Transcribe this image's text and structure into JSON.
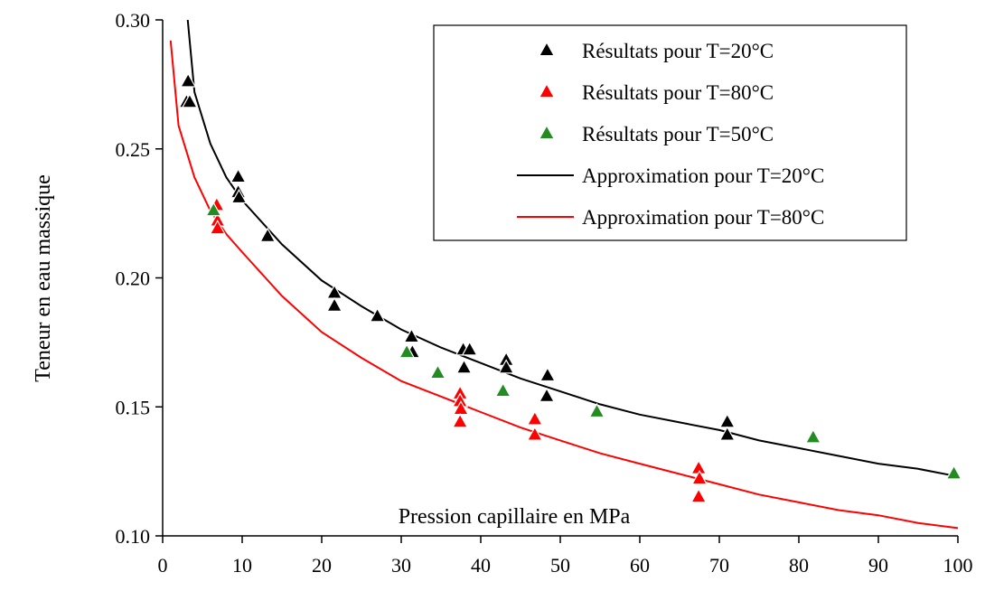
{
  "chart_data": {
    "type": "scatter",
    "title": "",
    "xlabel": "Pression capillaire en MPa",
    "ylabel": "Teneur en eau massique",
    "xlim": [
      0,
      100
    ],
    "ylim": [
      0.1,
      0.3
    ],
    "xticks": [
      "0",
      "10",
      "20",
      "30",
      "40",
      "50",
      "60",
      "70",
      "80",
      "90",
      "100"
    ],
    "xtick_values": [
      0,
      10,
      20,
      30,
      40,
      50,
      60,
      70,
      80,
      90,
      100
    ],
    "yticks": [
      "0.10",
      "0.15",
      "0.20",
      "0.25",
      "0.30"
    ],
    "ytick_values": [
      0.1,
      0.15,
      0.2,
      0.25,
      0.3
    ],
    "grid": false,
    "legend_position": "top-right",
    "series": [
      {
        "name": "Résultats pour T=20°C",
        "kind": "marker",
        "marker": "triangle",
        "color": "#000000",
        "points": [
          [
            3.2,
            0.276
          ],
          [
            3.0,
            0.268
          ],
          [
            3.4,
            0.268
          ],
          [
            9.5,
            0.239
          ],
          [
            9.5,
            0.233
          ],
          [
            9.6,
            0.231
          ],
          [
            13.2,
            0.216
          ],
          [
            21.6,
            0.194
          ],
          [
            21.6,
            0.189
          ],
          [
            27.0,
            0.185
          ],
          [
            31.3,
            0.177
          ],
          [
            31.4,
            0.171
          ],
          [
            37.8,
            0.172
          ],
          [
            38.6,
            0.172
          ],
          [
            37.9,
            0.165
          ],
          [
            43.2,
            0.168
          ],
          [
            43.2,
            0.165
          ],
          [
            48.4,
            0.162
          ],
          [
            48.3,
            0.154
          ],
          [
            71.0,
            0.144
          ],
          [
            71.0,
            0.139
          ]
        ]
      },
      {
        "name": "Résultats pour T=80°C",
        "kind": "marker",
        "marker": "triangle",
        "color": "#ff0000",
        "points": [
          [
            6.8,
            0.228
          ],
          [
            6.9,
            0.222
          ],
          [
            6.9,
            0.219
          ],
          [
            37.4,
            0.155
          ],
          [
            37.4,
            0.152
          ],
          [
            37.5,
            0.149
          ],
          [
            37.4,
            0.144
          ],
          [
            46.8,
            0.145
          ],
          [
            46.8,
            0.139
          ],
          [
            67.4,
            0.126
          ],
          [
            67.5,
            0.122
          ],
          [
            67.4,
            0.115
          ]
        ]
      },
      {
        "name": "Résultats pour T=50°C",
        "kind": "marker",
        "marker": "triangle",
        "color": "#228b22",
        "points": [
          [
            6.4,
            0.226
          ],
          [
            30.7,
            0.171
          ],
          [
            34.6,
            0.163
          ],
          [
            42.8,
            0.156
          ],
          [
            54.6,
            0.148
          ],
          [
            81.8,
            0.138
          ],
          [
            99.5,
            0.124
          ]
        ]
      },
      {
        "name": "Approximation pour T=20°C",
        "kind": "line",
        "color": "#000000",
        "points": [
          [
            3.0,
            0.305
          ],
          [
            4.0,
            0.272
          ],
          [
            6.0,
            0.252
          ],
          [
            8.0,
            0.239
          ],
          [
            10.0,
            0.23
          ],
          [
            15.0,
            0.213
          ],
          [
            20.0,
            0.199
          ],
          [
            25.0,
            0.189
          ],
          [
            30.0,
            0.18
          ],
          [
            35.0,
            0.173
          ],
          [
            40.0,
            0.167
          ],
          [
            45.0,
            0.161
          ],
          [
            50.0,
            0.156
          ],
          [
            55.0,
            0.151
          ],
          [
            60.0,
            0.147
          ],
          [
            65.0,
            0.144
          ],
          [
            70.0,
            0.141
          ],
          [
            75.0,
            0.137
          ],
          [
            80.0,
            0.134
          ],
          [
            85.0,
            0.131
          ],
          [
            90.0,
            0.128
          ],
          [
            95.0,
            0.126
          ],
          [
            100.0,
            0.123
          ]
        ]
      },
      {
        "name": "Approximation pour T=80°C",
        "kind": "line",
        "color": "#ff0000",
        "points": [
          [
            1.0,
            0.292
          ],
          [
            2.0,
            0.259
          ],
          [
            4.0,
            0.239
          ],
          [
            6.0,
            0.226
          ],
          [
            8.0,
            0.217
          ],
          [
            10.0,
            0.21
          ],
          [
            15.0,
            0.193
          ],
          [
            20.0,
            0.179
          ],
          [
            25.0,
            0.169
          ],
          [
            30.0,
            0.16
          ],
          [
            35.0,
            0.154
          ],
          [
            40.0,
            0.148
          ],
          [
            45.0,
            0.142
          ],
          [
            50.0,
            0.137
          ],
          [
            55.0,
            0.132
          ],
          [
            60.0,
            0.128
          ],
          [
            65.0,
            0.124
          ],
          [
            70.0,
            0.12
          ],
          [
            75.0,
            0.116
          ],
          [
            80.0,
            0.113
          ],
          [
            85.0,
            0.11
          ],
          [
            90.0,
            0.108
          ],
          [
            95.0,
            0.105
          ],
          [
            100.0,
            0.103
          ]
        ]
      }
    ]
  }
}
